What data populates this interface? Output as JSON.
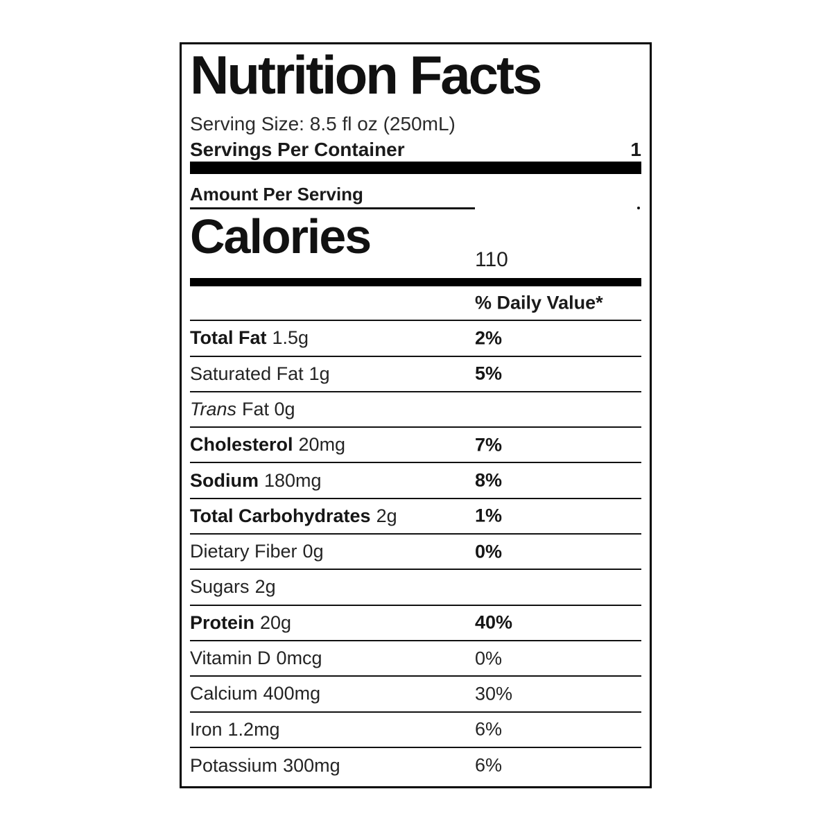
{
  "label": {
    "title": "Nutrition Facts",
    "serving_size": "Serving Size: 8.5 fl oz (250mL)",
    "servings_per_container_label": "Servings Per Container",
    "servings_per_container_value": "1",
    "amount_per_serving": "Amount Per Serving",
    "calories_label": "Calories",
    "calories_value": "110",
    "daily_value_header": "% Daily Value*",
    "rows": [
      {
        "name": "Total Fat",
        "amount": "1.5g",
        "percent": "2%"
      },
      {
        "name": "Saturated Fat",
        "amount": "1g",
        "percent": "5%"
      },
      {
        "name": "Trans",
        "amount": "Fat 0g",
        "percent": ""
      },
      {
        "name": "Cholesterol",
        "amount": "20mg",
        "percent": "7%"
      },
      {
        "name": "Sodium",
        "amount": "180mg",
        "percent": "8%"
      },
      {
        "name": "Total Carbohydrates",
        "amount": "2g",
        "percent": "1%"
      },
      {
        "name": "Dietary Fiber",
        "amount": "0g",
        "percent": "0%"
      },
      {
        "name": "Sugars",
        "amount": "2g",
        "percent": ""
      },
      {
        "name": "Protein",
        "amount": "20g",
        "percent": "40%"
      },
      {
        "name": "Vitamin D",
        "amount": "0mcg",
        "percent": "0%"
      },
      {
        "name": "Calcium",
        "amount": "400mg",
        "percent": "30%"
      },
      {
        "name": "Iron",
        "amount": "1.2mg",
        "percent": "6%"
      },
      {
        "name": "Potassium",
        "amount": "300mg",
        "percent": "6%"
      }
    ],
    "colors": {
      "text": "#1a1a1a",
      "rule": "#111111",
      "bar": "#000000",
      "background": "#ffffff"
    }
  }
}
